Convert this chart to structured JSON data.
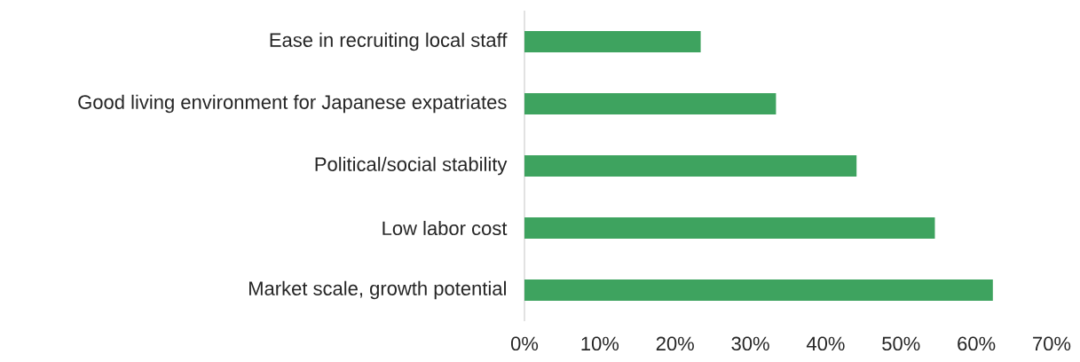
{
  "chart_data": {
    "type": "bar",
    "orientation": "horizontal",
    "categories": [
      "Ease in recruiting local staff",
      "Good living environment for Japanese expatriates",
      "Political/social stability",
      "Low labor cost",
      "Market scale, growth potential"
    ],
    "values": [
      23.4,
      33.4,
      44.1,
      54.5,
      62.2
    ],
    "color": "#3ea35f",
    "xlim": [
      0,
      70
    ],
    "xticks": [
      {
        "value": 0,
        "label": "0%"
      },
      {
        "value": 10,
        "label": "10%"
      },
      {
        "value": 20,
        "label": "20%"
      },
      {
        "value": 30,
        "label": "30%"
      },
      {
        "value": 40,
        "label": "40%"
      },
      {
        "value": 50,
        "label": "50%"
      },
      {
        "value": 60,
        "label": "60%"
      },
      {
        "value": 70,
        "label": "70%"
      }
    ],
    "grid": false
  }
}
